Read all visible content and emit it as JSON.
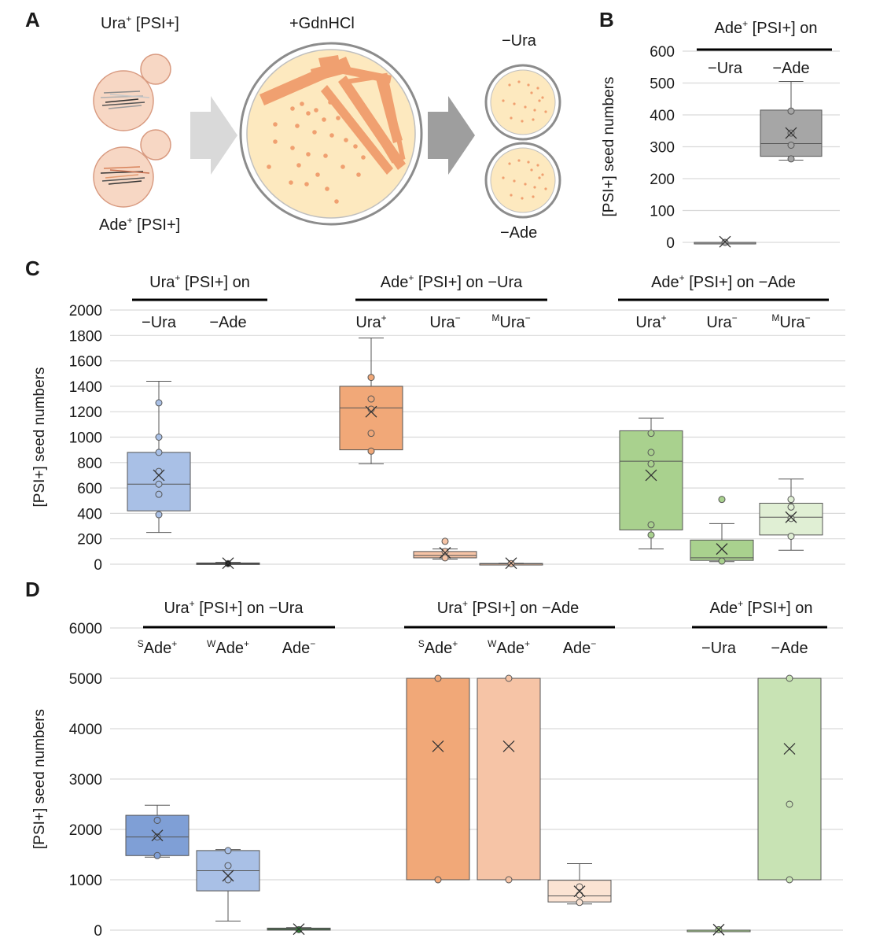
{
  "panel_labels": {
    "a": "A",
    "b": "B",
    "c": "C",
    "d": "D"
  },
  "colors": {
    "blue": "#a9c0e6",
    "blue_dark": "#7f9fd6",
    "orange": "#f1a878",
    "peach": "#f6c4a6",
    "green": "#a9d18e",
    "green_light": "#c8e3b4",
    "green_pale": "#e0efd4",
    "gray": "#a6a6a6",
    "plate_fill": "#fde9bf",
    "cell_fill": "#f7d7c4",
    "cell_stroke": "#d89a80",
    "streak": "#f0a070"
  },
  "schematic": {
    "top_cell_label_main": "Ura",
    "top_cell_label_sup": "+",
    "top_cell_label_tail": " [PSI+]",
    "bottom_cell_label_main": "Ade",
    "bottom_cell_label_sup": "+",
    "bottom_cell_label_tail": " [PSI+]",
    "plate_label": "+GdnHCl",
    "small_plate_top_label": "−Ura",
    "small_plate_bottom_label": "−Ade"
  },
  "chart_data": [
    {
      "id": "B",
      "type": "box",
      "ylabel": "[PSI+] seed numbers",
      "ylim": [
        0,
        600
      ],
      "yticks": [
        0,
        100,
        200,
        300,
        400,
        500,
        600
      ],
      "header": {
        "main": "Ade",
        "sup": "+",
        "tail": " [PSI+] on"
      },
      "groups": [
        {
          "name": "−Ura",
          "min": 0,
          "q1": 0,
          "median": 0,
          "q3": 0,
          "max": 0,
          "mean": 2,
          "points": [
            0
          ],
          "color": "#a6a6a6"
        },
        {
          "name": "−Ade",
          "min": 258,
          "q1": 270,
          "median": 310,
          "q3": 415,
          "max": 505,
          "mean": 343,
          "points": [
            262,
            305,
            343,
            412
          ],
          "color": "#a6a6a6"
        }
      ]
    },
    {
      "id": "C",
      "type": "box",
      "ylabel": "[PSI+] seed numbers",
      "ylim": [
        0,
        2000
      ],
      "yticks": [
        0,
        200,
        400,
        600,
        800,
        1000,
        1200,
        1400,
        1600,
        1800,
        2000
      ],
      "sections": [
        {
          "header": {
            "main": "Ura",
            "sup": "+",
            "tail": " [PSI+] on"
          },
          "groups": [
            {
              "name": "−Ura",
              "pre": "",
              "main": "−Ura",
              "sup": "",
              "min": 250,
              "q1": 420,
              "median": 630,
              "q3": 880,
              "max": 1440,
              "mean": 700,
              "points": [
                390,
                550,
                630,
                730,
                880,
                1000,
                1270
              ],
              "color": "#a9c0e6"
            },
            {
              "name": "−Ade",
              "pre": "",
              "main": "−Ade",
              "sup": "",
              "min": 0,
              "q1": 0,
              "median": 5,
              "q3": 10,
              "max": 15,
              "mean": 8,
              "points": [
                5
              ],
              "color": "#1a1a1a"
            }
          ]
        },
        {
          "header": {
            "main": "Ade",
            "sup": "+",
            "tail": " [PSI+] on −Ura"
          },
          "groups": [
            {
              "name": "Ura+",
              "pre": "",
              "main": "Ura",
              "sup": "+",
              "min": 790,
              "q1": 900,
              "median": 1230,
              "q3": 1400,
              "max": 1780,
              "mean": 1200,
              "points": [
                890,
                1030,
                1220,
                1300,
                1470
              ],
              "color": "#f1a878"
            },
            {
              "name": "Ura−",
              "pre": "",
              "main": "Ura",
              "sup": "−",
              "min": 40,
              "q1": 50,
              "median": 70,
              "q3": 100,
              "max": 120,
              "mean": 90,
              "points": [
                50,
                100,
                180
              ],
              "color": "#f6c4a6"
            },
            {
              "name": "MUra−",
              "pre": "M",
              "main": "Ura",
              "sup": "−",
              "min": 0,
              "q1": 0,
              "median": 3,
              "q3": 6,
              "max": 8,
              "mean": 8,
              "points": [
                5
              ],
              "color": "#f6c4a6"
            }
          ]
        },
        {
          "header": {
            "main": "Ade",
            "sup": "+",
            "tail": " [PSI+] on −Ade"
          },
          "groups": [
            {
              "name": "Ura+",
              "pre": "",
              "main": "Ura",
              "sup": "+",
              "min": 120,
              "q1": 270,
              "median": 810,
              "q3": 1050,
              "max": 1150,
              "mean": 700,
              "points": [
                230,
                310,
                790,
                880,
                1030
              ],
              "color": "#a9d18e"
            },
            {
              "name": "Ura−",
              "pre": "",
              "main": "Ura",
              "sup": "−",
              "min": 20,
              "q1": 30,
              "median": 50,
              "q3": 190,
              "max": 320,
              "mean": 120,
              "points": [
                25,
                510
              ],
              "color": "#a9d18e"
            },
            {
              "name": "MUra−",
              "pre": "M",
              "main": "Ura",
              "sup": "−",
              "min": 110,
              "q1": 230,
              "median": 370,
              "q3": 480,
              "max": 670,
              "mean": 370,
              "points": [
                220,
                360,
                450,
                510
              ],
              "color": "#e0efd4"
            }
          ]
        }
      ]
    },
    {
      "id": "D",
      "type": "box",
      "ylabel": "[PSI+] seed numbers",
      "ylim": [
        0,
        6000
      ],
      "yticks": [
        0,
        1000,
        2000,
        3000,
        4000,
        5000,
        6000
      ],
      "sections": [
        {
          "header": {
            "main": "Ura",
            "sup": "+",
            "tail": " [PSI+] on −Ura"
          },
          "groups": [
            {
              "name": "SAde+",
              "pre": "S",
              "main": "Ade",
              "sup": "+",
              "min": 1450,
              "q1": 1480,
              "median": 1850,
              "q3": 2280,
              "max": 2480,
              "mean": 1880,
              "points": [
                1480,
                1850,
                2180
              ],
              "color": "#7f9fd6"
            },
            {
              "name": "WAde+",
              "pre": "W",
              "main": "Ade",
              "sup": "+",
              "min": 180,
              "q1": 780,
              "median": 1180,
              "q3": 1580,
              "max": 1600,
              "mean": 1080,
              "points": [
                1000,
                1280,
                1580
              ],
              "color": "#a9c0e6"
            },
            {
              "name": "Ade−",
              "pre": "",
              "main": "Ade",
              "sup": "−",
              "min": 0,
              "q1": 0,
              "median": 20,
              "q3": 40,
              "max": 50,
              "mean": 20,
              "points": [
                10
              ],
              "color": "#2e7d32"
            }
          ]
        },
        {
          "header": {
            "main": "Ura",
            "sup": "+",
            "tail": " [PSI+] on −Ade"
          },
          "groups": [
            {
              "name": "SAde+",
              "pre": "S",
              "main": "Ade",
              "sup": "+",
              "min": 1000,
              "q1": 1000,
              "median": 5000,
              "q3": 5000,
              "max": 5000,
              "mean": 3650,
              "points": [
                1000,
                5000
              ],
              "color": "#f1a878"
            },
            {
              "name": "WAde+",
              "pre": "W",
              "main": "Ade",
              "sup": "+",
              "min": 1000,
              "q1": 1000,
              "median": 5000,
              "q3": 5000,
              "max": 5000,
              "mean": 3650,
              "points": [
                1000,
                5000
              ],
              "color": "#f6c4a6"
            },
            {
              "name": "Ade−",
              "pre": "",
              "main": "Ade",
              "sup": "−",
              "min": 520,
              "q1": 560,
              "median": 680,
              "q3": 990,
              "max": 1320,
              "mean": 770,
              "points": [
                550,
                700,
                860
              ],
              "color": "#fbe3d3"
            }
          ]
        },
        {
          "header": {
            "main": "Ade",
            "sup": "+",
            "tail": " [PSI+] on"
          },
          "groups": [
            {
              "name": "−Ura",
              "pre": "",
              "main": "−Ura",
              "sup": "",
              "min": 0,
              "q1": 0,
              "median": 0,
              "q3": 0,
              "max": 0,
              "mean": 10,
              "points": [
                10
              ],
              "color": "#a9d18e"
            },
            {
              "name": "−Ade",
              "pre": "",
              "main": "−Ade",
              "sup": "",
              "min": 1000,
              "q1": 1000,
              "median": 5000,
              "q3": 5000,
              "max": 5000,
              "mean": 3600,
              "points": [
                1000,
                2500,
                5000
              ],
              "color": "#c8e3b4"
            }
          ]
        }
      ]
    }
  ]
}
